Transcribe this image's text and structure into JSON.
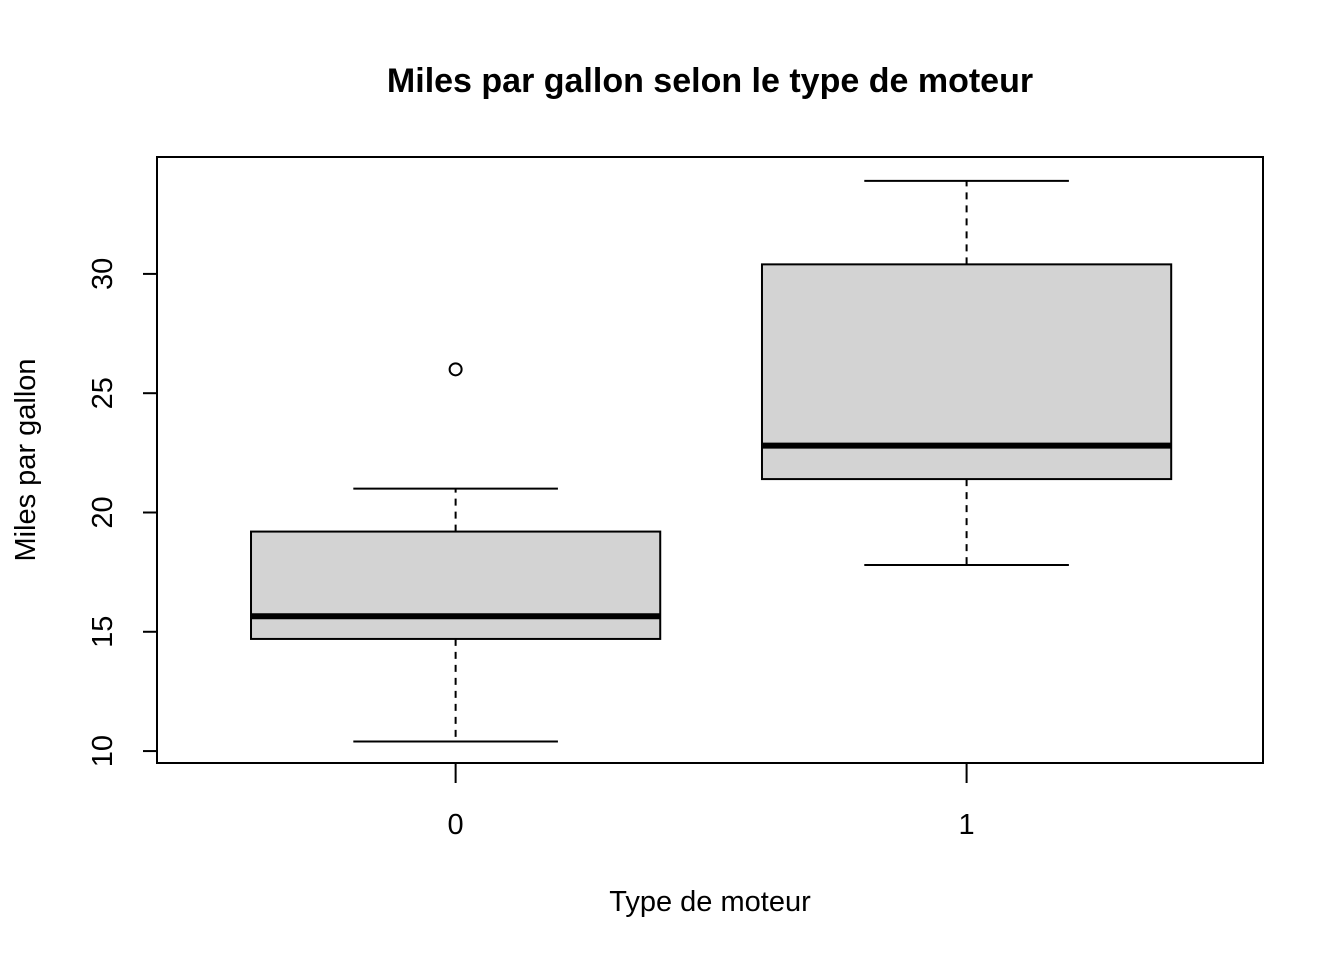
{
  "chart_data": {
    "type": "box",
    "title": "Miles par gallon selon le type de moteur",
    "xlabel": "Type de moteur",
    "ylabel": "Miles par gallon",
    "categories": [
      "0",
      "1"
    ],
    "ylim": [
      9.5,
      34.9
    ],
    "yticks": [
      10,
      15,
      20,
      25,
      30
    ],
    "grid": false,
    "legend": "none",
    "box_fill": "#d3d3d3",
    "line_color": "#000000",
    "boxes": [
      {
        "category": "0",
        "whisker_low": 10.4,
        "q1": 14.7,
        "median": 15.65,
        "q3": 19.2,
        "whisker_high": 21.0,
        "outliers": [
          26.0
        ]
      },
      {
        "category": "1",
        "whisker_low": 17.8,
        "q1": 21.4,
        "median": 22.8,
        "q3": 30.4,
        "whisker_high": 33.9,
        "outliers": []
      }
    ]
  }
}
